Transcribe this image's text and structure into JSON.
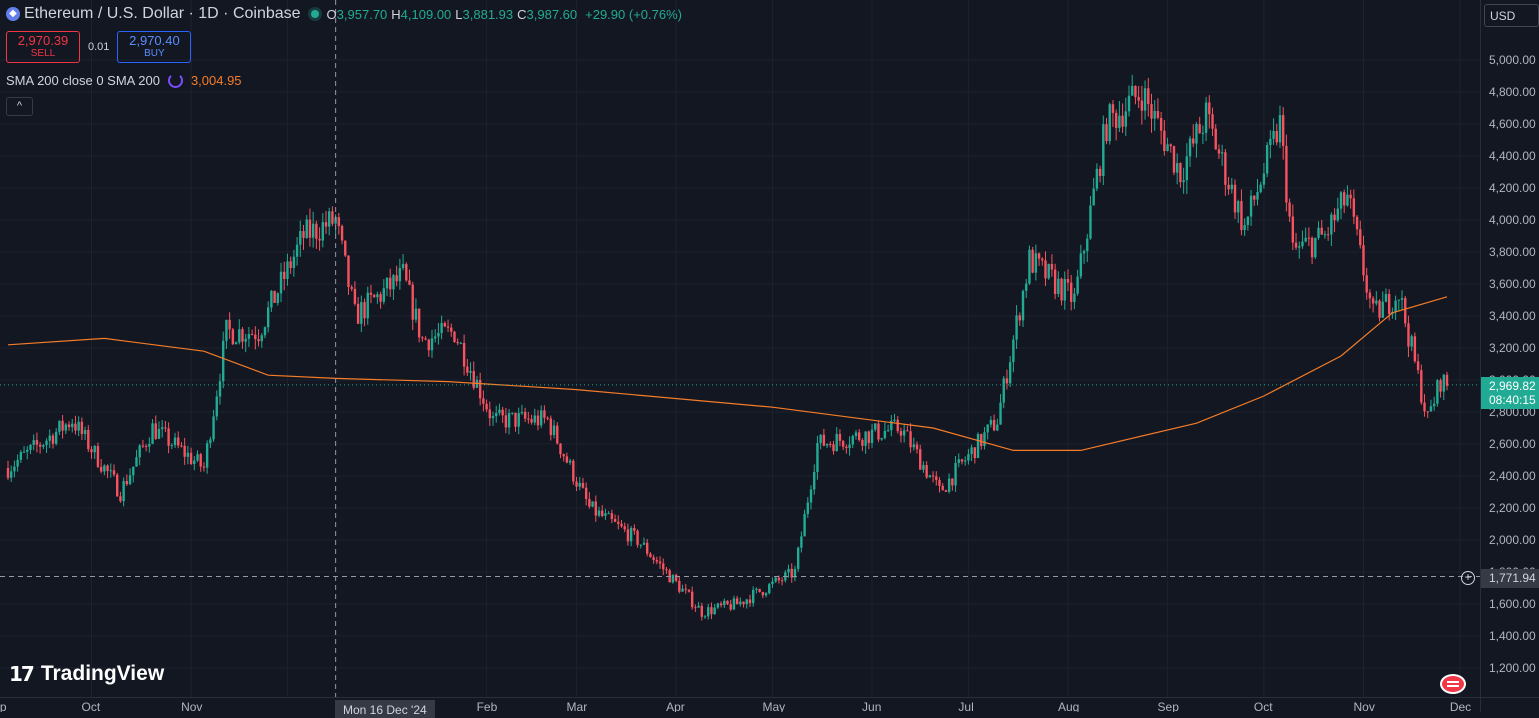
{
  "header": {
    "symbol": "Ethereum / U.S. Dollar · 1D · Coinbase",
    "open_label": "O",
    "open": "3,957.70",
    "high_label": "H",
    "high": "4,109.00",
    "low_label": "L",
    "low": "3,881.93",
    "close_label": "C",
    "close": "3,987.60",
    "change": "+29.90 (+0.76%)"
  },
  "trade": {
    "sell_price": "2,970.39",
    "sell_label": "SELL",
    "spread": "0.01",
    "buy_price": "2,970.40",
    "buy_label": "BUY"
  },
  "indicator": {
    "label": "SMA 200 close 0 SMA 200",
    "value": "3,004.95"
  },
  "currency": "USD",
  "current_price": "2,969.82",
  "countdown": "08:40:15",
  "crosshair_price": "1,771.94",
  "crosshair_date": "Mon 16 Dec '24",
  "brand": "TradingView",
  "colors": {
    "up": "#22ab94",
    "down": "#f7525f",
    "sma": "#f57c28",
    "background": "#131722"
  },
  "icons": [
    "ethereum-icon",
    "sync-icon",
    "chevron-up-icon",
    "plus-circle-icon",
    "flag-icon"
  ],
  "chart_data": {
    "type": "candlestick",
    "interval": "1D",
    "ylim": [
      1100,
      5100
    ],
    "ytick_labels": [
      "1,200.00",
      "1,400.00",
      "1,600.00",
      "1,800.00",
      "2,000.00",
      "2,200.00",
      "2,400.00",
      "2,600.00",
      "2,800.00",
      "3,000.00",
      "3,200.00",
      "3,400.00",
      "3,600.00",
      "3,800.00",
      "4,000.00",
      "4,200.00",
      "4,400.00",
      "4,600.00",
      "4,800.00",
      "5,000.00"
    ],
    "xtick_labels": [
      "Sep",
      "Oct",
      "Nov",
      "",
      "Feb",
      "Mar",
      "Apr",
      "May",
      "Jun",
      "Jul",
      "Aug",
      "Sep",
      "Oct",
      "Nov",
      "Dec"
    ],
    "x_range": [
      "2024-09-05",
      "2025-11-27"
    ],
    "close_path": [
      {
        "x": "2024-09-05",
        "y": 2450
      },
      {
        "x": "2024-09-25",
        "y": 2750
      },
      {
        "x": "2024-10-10",
        "y": 2300
      },
      {
        "x": "2024-10-20",
        "y": 2700
      },
      {
        "x": "2024-11-05",
        "y": 2450
      },
      {
        "x": "2024-11-12",
        "y": 3300
      },
      {
        "x": "2024-11-22",
        "y": 3300
      },
      {
        "x": "2024-12-06",
        "y": 3900
      },
      {
        "x": "2024-12-16",
        "y": 4000
      },
      {
        "x": "2024-12-22",
        "y": 3400
      },
      {
        "x": "2025-01-06",
        "y": 3650
      },
      {
        "x": "2025-01-12",
        "y": 3250
      },
      {
        "x": "2025-01-22",
        "y": 3300
      },
      {
        "x": "2025-02-03",
        "y": 2750
      },
      {
        "x": "2025-02-20",
        "y": 2750
      },
      {
        "x": "2025-03-05",
        "y": 2200
      },
      {
        "x": "2025-03-20",
        "y": 2000
      },
      {
        "x": "2025-04-09",
        "y": 1550
      },
      {
        "x": "2025-04-20",
        "y": 1600
      },
      {
        "x": "2025-05-08",
        "y": 1800
      },
      {
        "x": "2025-05-15",
        "y": 2600
      },
      {
        "x": "2025-06-10",
        "y": 2700
      },
      {
        "x": "2025-06-22",
        "y": 2300
      },
      {
        "x": "2025-07-10",
        "y": 2750
      },
      {
        "x": "2025-07-20",
        "y": 3750
      },
      {
        "x": "2025-08-03",
        "y": 3500
      },
      {
        "x": "2025-08-13",
        "y": 4600
      },
      {
        "x": "2025-08-24",
        "y": 4800
      },
      {
        "x": "2025-09-05",
        "y": 4300
      },
      {
        "x": "2025-09-13",
        "y": 4650
      },
      {
        "x": "2025-09-25",
        "y": 3950
      },
      {
        "x": "2025-10-06",
        "y": 4600
      },
      {
        "x": "2025-10-10",
        "y": 3800
      },
      {
        "x": "2025-10-20",
        "y": 3900
      },
      {
        "x": "2025-10-27",
        "y": 4150
      },
      {
        "x": "2025-11-04",
        "y": 3400
      },
      {
        "x": "2025-11-12",
        "y": 3550
      },
      {
        "x": "2025-11-21",
        "y": 2750
      },
      {
        "x": "2025-11-25",
        "y": 3000
      },
      {
        "x": "2025-11-27",
        "y": 2969.82
      }
    ],
    "sma_200": [
      {
        "x": "2024-09-05",
        "y": 3220
      },
      {
        "x": "2024-10-05",
        "y": 3260
      },
      {
        "x": "2024-11-05",
        "y": 3180
      },
      {
        "x": "2024-11-25",
        "y": 3030
      },
      {
        "x": "2024-12-16",
        "y": 3010
      },
      {
        "x": "2025-01-20",
        "y": 2990
      },
      {
        "x": "2025-03-01",
        "y": 2940
      },
      {
        "x": "2025-05-01",
        "y": 2830
      },
      {
        "x": "2025-06-20",
        "y": 2700
      },
      {
        "x": "2025-07-15",
        "y": 2560
      },
      {
        "x": "2025-08-05",
        "y": 2560
      },
      {
        "x": "2025-09-10",
        "y": 2730
      },
      {
        "x": "2025-10-01",
        "y": 2900
      },
      {
        "x": "2025-10-25",
        "y": 3150
      },
      {
        "x": "2025-11-10",
        "y": 3420
      },
      {
        "x": "2025-11-27",
        "y": 3520
      }
    ]
  }
}
